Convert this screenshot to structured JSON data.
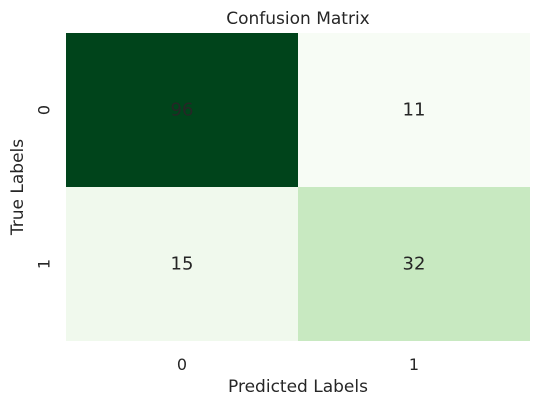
{
  "chart_data": {
    "type": "heatmap",
    "title": "Confusion Matrix",
    "xlabel": "Predicted Labels",
    "ylabel": "True Labels",
    "x_categories": [
      "0",
      "1"
    ],
    "y_categories": [
      "0",
      "1"
    ],
    "values": [
      [
        96,
        11
      ],
      [
        15,
        32
      ]
    ],
    "color_map": "Greens",
    "value_range": [
      11,
      96
    ],
    "colorbar": false,
    "annotated": true
  },
  "colors": {
    "text_on_light": "#262626",
    "text_on_dark": "#ffffff",
    "scale_low": "#f7fcf5",
    "scale_high": "#00441b"
  }
}
